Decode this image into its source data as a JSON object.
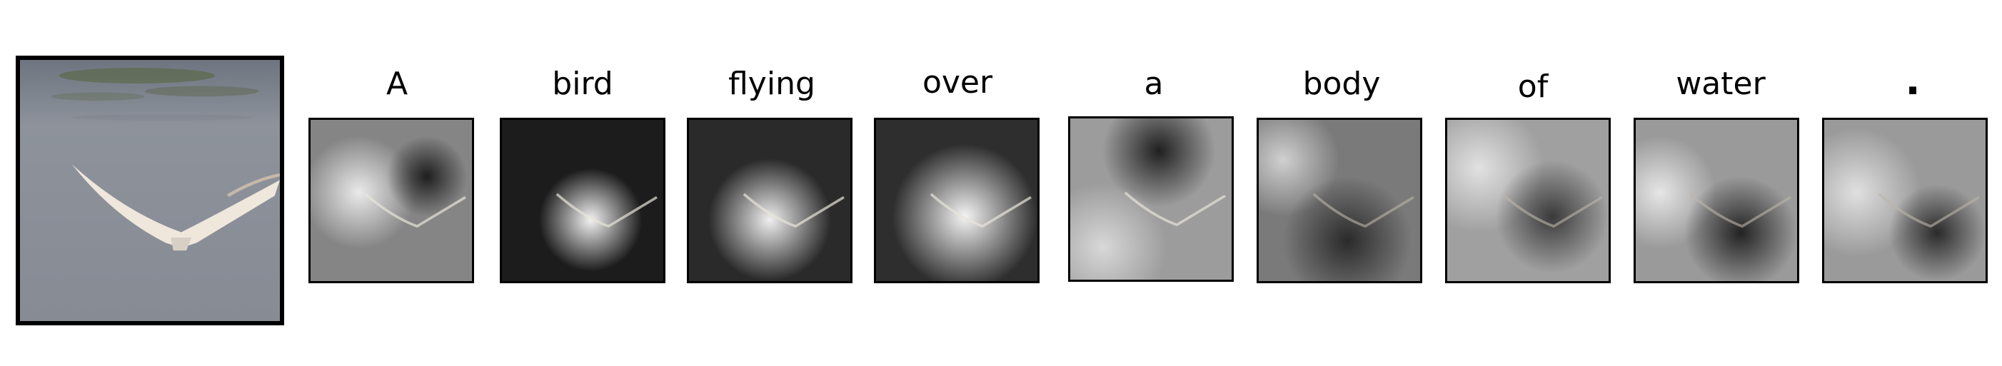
{
  "caption_words": [
    "A",
    "bird",
    "flying",
    "over",
    "a",
    "body",
    "of",
    "water",
    "."
  ],
  "original_image": {
    "description_icon": "bird-photo-icon",
    "colors": {
      "water": "#8a8f98",
      "water_dark": "#6f7480",
      "algae": "#5b6a4a",
      "bird": "#efe7dc"
    }
  },
  "attention_panels": [
    {
      "word": "A"
    },
    {
      "word": "bird"
    },
    {
      "word": "flying"
    },
    {
      "word": "over"
    },
    {
      "word": "a"
    },
    {
      "word": "body"
    },
    {
      "word": "of"
    },
    {
      "word": "water"
    },
    {
      "word": "."
    }
  ]
}
